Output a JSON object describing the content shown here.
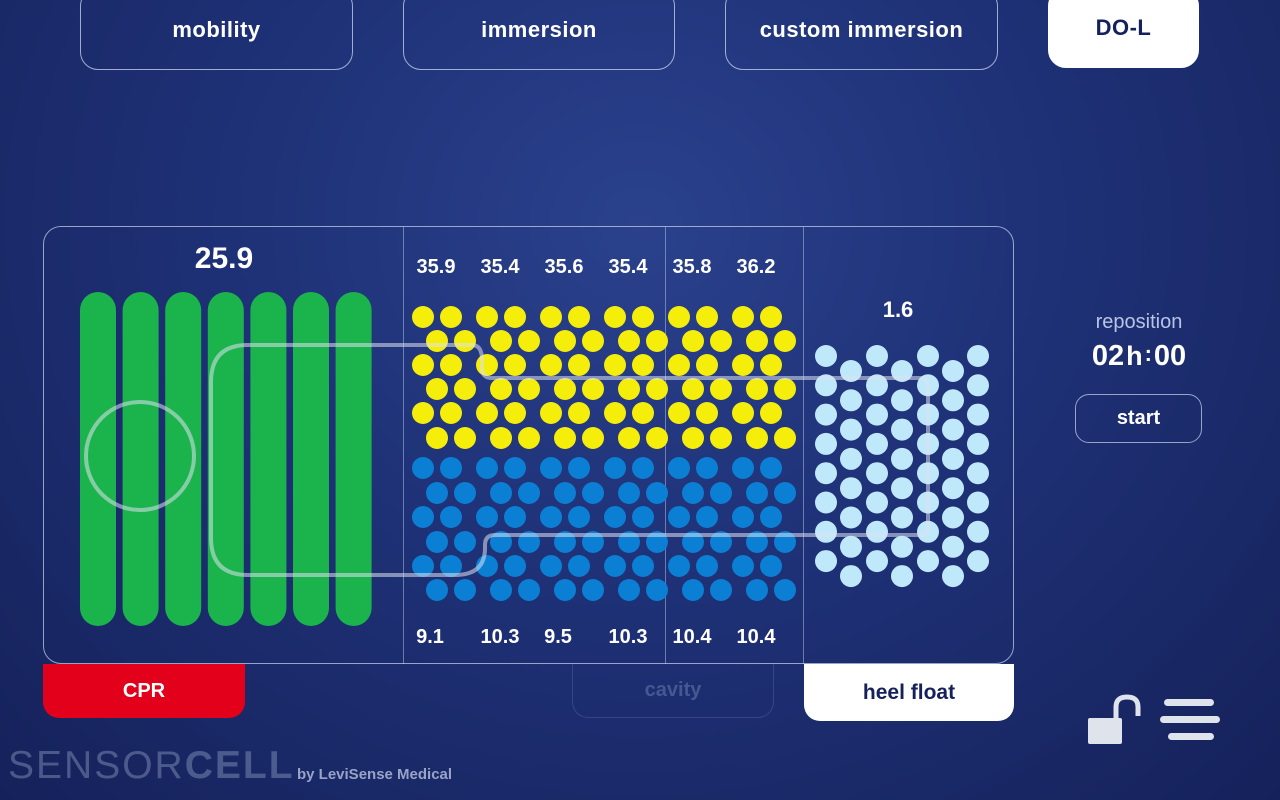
{
  "tabs": [
    {
      "label": "mobility",
      "active": false
    },
    {
      "label": "immersion",
      "active": false
    },
    {
      "label": "custom immersion",
      "active": false
    },
    {
      "label": "DO-L",
      "active": true
    }
  ],
  "zones": {
    "head": {
      "value": "25.9"
    },
    "torso_top_values": [
      "35.9",
      "35.4",
      "35.6",
      "35.4",
      "35.8",
      "36.2"
    ],
    "torso_bottom_values": [
      "9.1",
      "10.3",
      "9.5",
      "10.3",
      "10.4",
      "10.4"
    ],
    "heel": {
      "value": "1.6"
    }
  },
  "buttons": {
    "cpr": "CPR",
    "cavity": "cavity",
    "heel_float": "heel float",
    "start": "start"
  },
  "timer": {
    "label": "reposition",
    "hours": "02",
    "h_unit": "h",
    "separator": ":",
    "minutes": "00"
  },
  "brand": {
    "name_light": "SENSOR",
    "name_bold": "CELL",
    "byline": "by LeviSense Medical"
  },
  "icons": {
    "lock": "unlocked-padlock-icon",
    "menu": "hamburger-menu-icon"
  },
  "colors": {
    "background": "#1f3278",
    "head_zone": "#1bb44c",
    "torso_upper": "#f5ee0a",
    "torso_lower": "#0a7fd3",
    "heel_zone": "#bfe9fb",
    "cpr": "#e3001b"
  }
}
